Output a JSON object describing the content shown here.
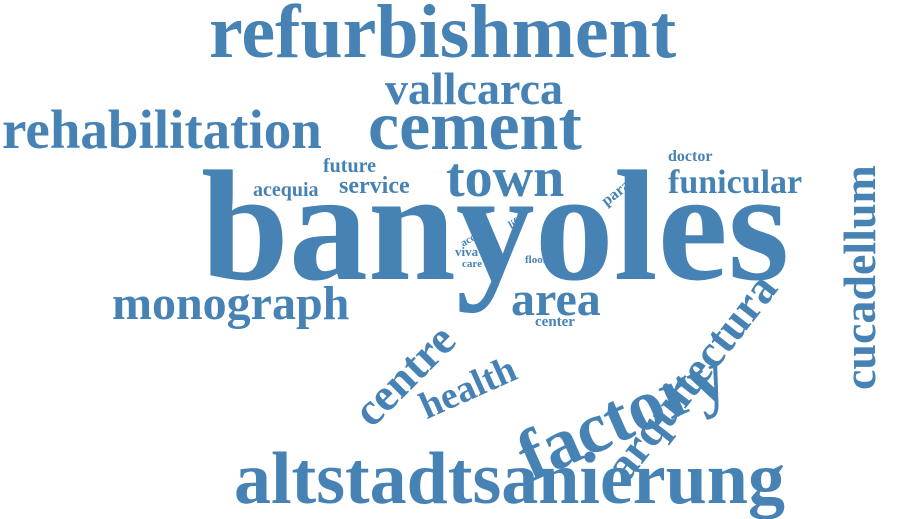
{
  "style": {
    "text_color": "#4682b4",
    "background": "#ffffff"
  },
  "words": {
    "banyoles": "banyoles",
    "refurbishment": "refurbishment",
    "altstadtsanierung": "altstadtsanierung",
    "cement": "cement",
    "rehabilitation": "rehabilitation",
    "vallcarca": "vallcarca",
    "town": "town",
    "factory": "factory",
    "arquitectura": "arquitectura",
    "cucadellum": "cucadellum",
    "monograph": "monograph",
    "centre": "centre",
    "area": "area",
    "health": "health",
    "funicular": "funicular",
    "service": "service",
    "acequia": "acequia",
    "future": "future",
    "doctor": "doctor",
    "para": "para",
    "life": "life",
    "acc": "acc",
    "viva": "viva",
    "care": "care",
    "floor": "floor",
    "center": "center"
  }
}
